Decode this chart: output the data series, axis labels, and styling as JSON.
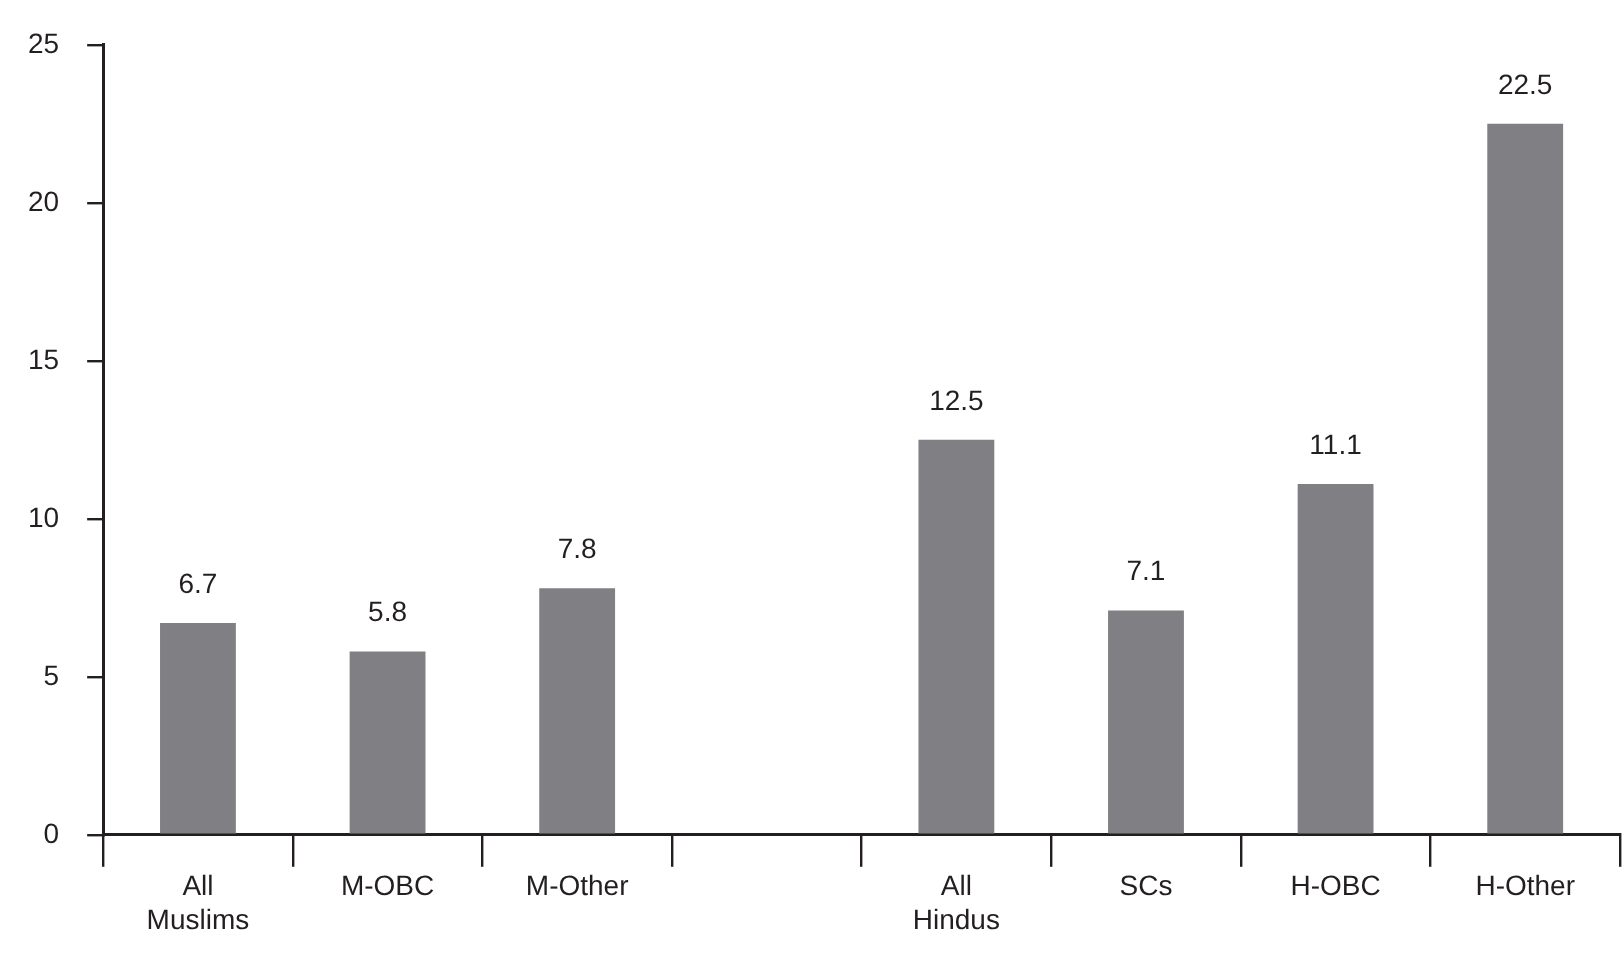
{
  "chart_data": {
    "type": "bar",
    "categories": [
      "All Muslims",
      "M-OBC",
      "M-Other",
      null,
      "All Hindus",
      "SCs",
      "H-OBC",
      "H-Other"
    ],
    "values": [
      6.7,
      5.8,
      7.8,
      null,
      12.5,
      7.1,
      11.1,
      22.5
    ],
    "color": "#808084",
    "ylim": [
      0,
      25
    ],
    "yticks": [
      0,
      5,
      10,
      15,
      20,
      25
    ],
    "grid": false,
    "legend": false,
    "data_labels": true
  }
}
